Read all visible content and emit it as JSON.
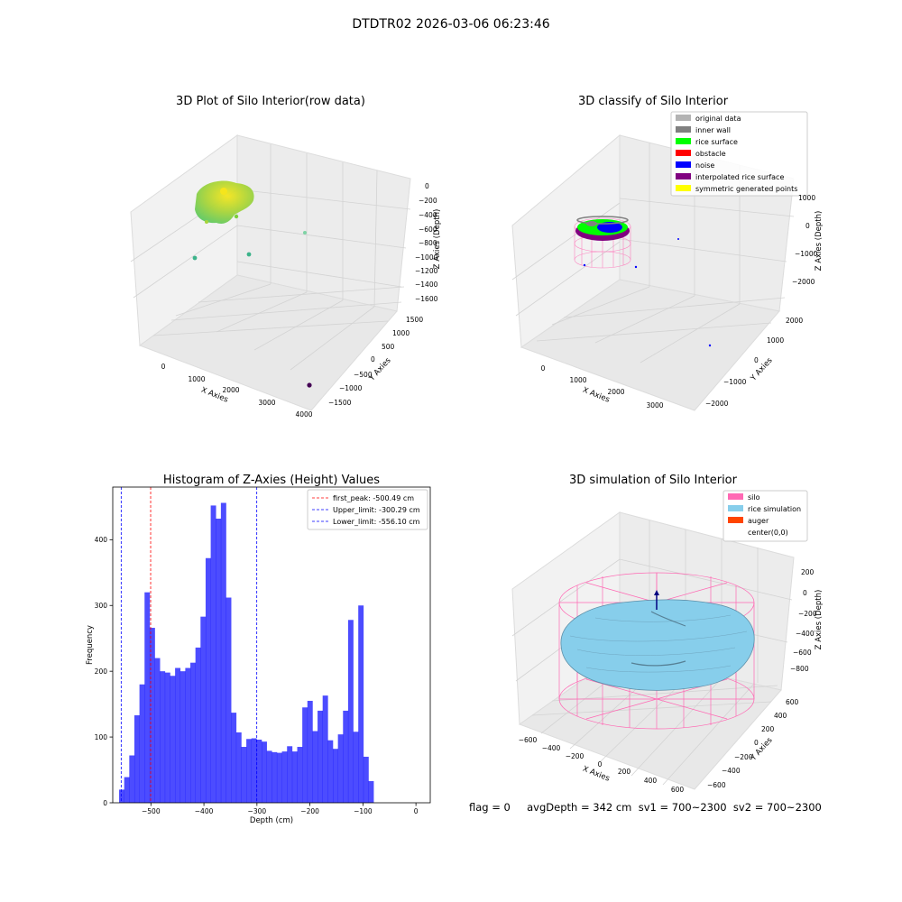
{
  "figure": {
    "suptitle": "DTDTR02 2026-03-06 06:23:46"
  },
  "status": {
    "text": "flag = 0     avgDepth = 342 cm  sv1 = 700~2300  sv2 = 700~2300"
  },
  "panel_raw": {
    "title": "3D Plot of Silo Interior(row data)",
    "xlabel": "X Axies",
    "ylabel": "Y Axies",
    "zlabel": "Z Axies (Depth)",
    "xticks": [
      "0",
      "1000",
      "2000",
      "3000",
      "4000"
    ],
    "yticks": [
      "1500",
      "1000",
      "500",
      "0",
      "−500",
      "−1000",
      "−1500"
    ],
    "zticks": [
      "0",
      "−200",
      "−400",
      "−600",
      "−800",
      "−1000",
      "−1200",
      "−1400",
      "−1600"
    ],
    "colors": {
      "cloud_yellow": "#f5e51c",
      "cloud_green": "#7ccf3a",
      "outlier_teal": "#3cb38a",
      "outlier_purple": "#440154"
    }
  },
  "panel_classify": {
    "title": "3D classify of Silo Interior",
    "xlabel": "X Axies",
    "ylabel": "Y Axies",
    "zlabel": "Z Axies (Depth)",
    "xticks": [
      "0",
      "1000",
      "2000",
      "3000"
    ],
    "yticks": [
      "2000",
      "1000",
      "0",
      "−1000",
      "−2000"
    ],
    "zticks": [
      "1000",
      "0",
      "−1000",
      "−2000"
    ],
    "legend": [
      {
        "label": "original data",
        "color": "#b3b3b3"
      },
      {
        "label": "inner wall",
        "color": "#808080"
      },
      {
        "label": "rice surface",
        "color": "#00ff00"
      },
      {
        "label": "obstacle",
        "color": "#ff0000"
      },
      {
        "label": "noise",
        "color": "#0000ff"
      },
      {
        "label": "interpolated rice surface",
        "color": "#800080"
      },
      {
        "label": "symmetric generated points",
        "color": "#ffff00"
      }
    ]
  },
  "panel_sim": {
    "title": "3D simulation of Silo Interior",
    "xlabel": "X Axies",
    "ylabel": "Y Axies",
    "zlabel": "Z Axies (Depth)",
    "xticks": [
      "−600",
      "−400",
      "−200",
      "0",
      "200",
      "400",
      "600"
    ],
    "yticks": [
      "600",
      "400",
      "200",
      "0",
      "−200",
      "−400",
      "−600"
    ],
    "zticks": [
      "200",
      "0",
      "−200",
      "−400",
      "−600",
      "−800"
    ],
    "legend": [
      {
        "label": "silo",
        "color": "#ff69b4"
      },
      {
        "label": "rice simulation",
        "color": "#87ceeb"
      },
      {
        "label": "auger",
        "color": "#ff4500"
      },
      {
        "label": "center(0,0)",
        "color": ""
      }
    ]
  },
  "chart_data": {
    "type": "bar",
    "title": "Histogram of Z-Axies (Height) Values",
    "xlabel": "Depth (cm)",
    "ylabel": "Frequency",
    "xlim": [
      -572,
      27
    ],
    "ylim": [
      0,
      480
    ],
    "xticks": [
      -500,
      -400,
      -300,
      -200,
      -100,
      0
    ],
    "yticks": [
      0,
      100,
      200,
      300,
      400
    ],
    "bar_color": "#0000ff",
    "bin_start": -560,
    "bin_width": 9.6,
    "values": [
      20,
      39,
      72,
      133,
      180,
      320,
      266,
      220,
      200,
      198,
      193,
      205,
      200,
      205,
      213,
      236,
      283,
      372,
      452,
      432,
      456,
      312,
      137,
      107,
      85,
      97,
      98,
      96,
      93,
      79,
      77,
      76,
      78,
      86,
      78,
      85,
      145,
      155,
      109,
      140,
      163,
      95,
      82,
      104,
      140,
      278,
      108,
      300,
      70,
      33
    ],
    "vlines": [
      {
        "x": -500.49,
        "color": "#ff0000",
        "label": "first_peak: -500.49 cm"
      },
      {
        "x": -300.29,
        "color": "#0000ff",
        "label": "Upper_limit: -300.29 cm"
      },
      {
        "x": -556.1,
        "color": "#0000ff",
        "label": "Lower_limit: -556.10 cm"
      }
    ],
    "legend_position": "upper right"
  }
}
